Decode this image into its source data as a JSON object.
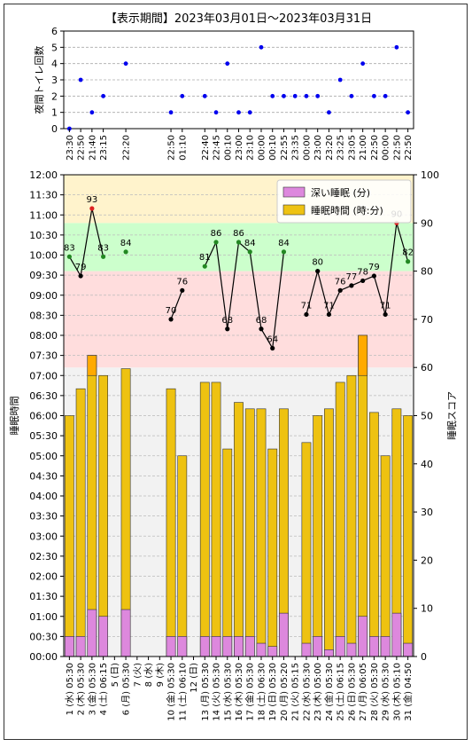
{
  "colors": {
    "deep_sleep": "#dd88dd",
    "sleep_total": "#eec211",
    "sleep_total_overflow": "#ffaa00",
    "band_high": "#fff3cc",
    "band_good": "#ccffcc",
    "band_low": "#ffdddd",
    "band_bg": "#f2f2f2",
    "point_blue": "#0000ee",
    "point_green": "#228822",
    "point_black": "#000000",
    "point_red": "#dd2222"
  },
  "chart_data": [
    {
      "type": "scatter",
      "title": "【表示期間】2023年03月01日～2023年03月31日",
      "ylabel": "夜間トイレ回数",
      "ylim": [
        0,
        6
      ],
      "yticks": [
        "0",
        "1",
        "2",
        "3",
        "4",
        "5",
        "6"
      ],
      "grid": true,
      "points": [
        {
          "day": 1,
          "value": 0
        },
        {
          "day": 2,
          "value": 3
        },
        {
          "day": 3,
          "value": 1
        },
        {
          "day": 4,
          "value": 2
        },
        {
          "day": 6,
          "value": 4
        },
        {
          "day": 10,
          "value": 1
        },
        {
          "day": 11,
          "value": 2
        },
        {
          "day": 13,
          "value": 2
        },
        {
          "day": 14,
          "value": 1
        },
        {
          "day": 15,
          "value": 4
        },
        {
          "day": 16,
          "value": 1
        },
        {
          "day": 17,
          "value": 1
        },
        {
          "day": 18,
          "value": 5
        },
        {
          "day": 19,
          "value": 2
        },
        {
          "day": 20,
          "value": 2
        },
        {
          "day": 21,
          "value": 2
        },
        {
          "day": 22,
          "value": 2
        },
        {
          "day": 23,
          "value": 2
        },
        {
          "day": 24,
          "value": 1
        },
        {
          "day": 25,
          "value": 3
        },
        {
          "day": 26,
          "value": 2
        },
        {
          "day": 27,
          "value": 4
        },
        {
          "day": 28,
          "value": 2
        },
        {
          "day": 29,
          "value": 2
        },
        {
          "day": 30,
          "value": 5
        },
        {
          "day": 31,
          "value": 1
        }
      ],
      "time_labels": [
        {
          "day": 1,
          "text": "23:30"
        },
        {
          "day": 2,
          "text": "22:50"
        },
        {
          "day": 3,
          "text": "21:40"
        },
        {
          "day": 4,
          "text": "23:15"
        },
        {
          "day": 6,
          "text": "22:20"
        },
        {
          "day": 10,
          "text": "22:50"
        },
        {
          "day": 11,
          "text": "01:10"
        },
        {
          "day": 13,
          "text": "22:40"
        },
        {
          "day": 14,
          "text": "22:45"
        },
        {
          "day": 15,
          "text": "00:10"
        },
        {
          "day": 16,
          "text": "23:00"
        },
        {
          "day": 17,
          "text": "23:10"
        },
        {
          "day": 18,
          "text": "00:00"
        },
        {
          "day": 19,
          "text": "00:10"
        },
        {
          "day": 20,
          "text": "22:55"
        },
        {
          "day": 21,
          "text": "23:35"
        },
        {
          "day": 22,
          "text": "00:00"
        },
        {
          "day": 23,
          "text": "23:00"
        },
        {
          "day": 24,
          "text": "23:20"
        },
        {
          "day": 25,
          "text": "23:25"
        },
        {
          "day": 26,
          "text": "23:05"
        },
        {
          "day": 27,
          "text": "21:00"
        },
        {
          "day": 28,
          "text": "22:50"
        },
        {
          "day": 29,
          "text": "00:00"
        },
        {
          "day": 30,
          "text": "22:50"
        },
        {
          "day": 31,
          "text": "22:50"
        }
      ]
    },
    {
      "type": "bar",
      "ylabel": "睡眠時間",
      "y2label": "睡眠スコア",
      "yticks": [
        "00:00",
        "00:30",
        "01:00",
        "01:30",
        "02:00",
        "02:30",
        "03:00",
        "03:30",
        "04:00",
        "04:30",
        "05:00",
        "05:30",
        "06:00",
        "06:30",
        "07:00",
        "07:30",
        "08:00",
        "08:30",
        "09:00",
        "09:30",
        "10:00",
        "10:30",
        "11:00",
        "11:30",
        "12:00"
      ],
      "y2ticks": [
        "0",
        "10",
        "20",
        "30",
        "40",
        "50",
        "60",
        "70",
        "80",
        "90",
        "100"
      ],
      "ylim_hours": [
        0,
        12
      ],
      "y2lim": [
        0,
        100
      ],
      "legend": [
        "深い睡眠 (分)",
        "睡眠時間 (時:分)"
      ],
      "legend_position": "top-right",
      "categories": [
        "1 (水) 05:30",
        "2 (木) 05:30",
        "3 (金) 05:30",
        "4 (土) 06:15",
        "5 (日)",
        "6 (月) 05:30",
        "7 (火)",
        "8 (水)",
        "9 (木)",
        "10 (金) 05:30",
        "11 (土) 06:10",
        "12 (日)",
        "13 (月) 05:30",
        "14 (火) 05:30",
        "15 (水) 05:30",
        "16 (木) 05:30",
        "17 (金) 05:30",
        "18 (土) 06:30",
        "19 (日) 05:30",
        "20 (月) 05:20",
        "21 (火) 05:15",
        "22 (水) 05:30",
        "23 (木) 05:00",
        "24 (金) 05:30",
        "25 (土) 06:15",
        "26 (日) 05:30",
        "27 (月) 06:05",
        "28 (火) 05:30",
        "29 (水) 05:30",
        "30 (木) 05:10",
        "31 (金) 04:50"
      ],
      "sleep_hours": [
        6.0,
        6.67,
        7.5,
        7.0,
        null,
        7.17,
        null,
        null,
        null,
        6.67,
        5.0,
        null,
        6.83,
        6.83,
        5.17,
        6.33,
        6.17,
        6.17,
        5.17,
        6.17,
        null,
        5.33,
        6.0,
        6.17,
        6.83,
        7.0,
        8.0,
        6.08,
        5.0,
        6.17,
        6.0
      ],
      "overflow_hours": [
        0,
        0,
        7.5,
        0,
        null,
        0,
        null,
        null,
        null,
        0,
        0,
        null,
        0,
        0,
        0,
        0,
        0,
        0,
        0,
        0,
        null,
        0,
        0,
        0,
        0,
        0,
        8.0,
        0,
        0,
        0,
        0
      ],
      "overflow_start": [
        0,
        0,
        7.0,
        0,
        null,
        0,
        null,
        null,
        null,
        0,
        0,
        null,
        0,
        0,
        0,
        0,
        0,
        0,
        0,
        0,
        null,
        0,
        0,
        0,
        0,
        0,
        7.0,
        0,
        0,
        0,
        0
      ],
      "deep_sleep_hours": [
        0.5,
        0.5,
        1.17,
        1.0,
        null,
        1.17,
        null,
        null,
        null,
        0.5,
        0.5,
        null,
        0.5,
        0.5,
        0.5,
        0.5,
        0.5,
        0.33,
        0.25,
        1.08,
        null,
        0.33,
        0.5,
        0.17,
        0.5,
        0.33,
        1.0,
        0.5,
        0.5,
        1.08,
        0.33
      ],
      "scores": [
        83,
        79,
        93,
        83,
        null,
        84,
        null,
        null,
        null,
        70,
        76,
        null,
        81,
        86,
        68,
        86,
        84,
        68,
        64,
        84,
        null,
        71,
        80,
        71,
        76,
        77,
        78,
        79,
        71,
        90,
        82
      ],
      "score_colors": [
        "green",
        "black",
        "red",
        "green",
        null,
        "green",
        null,
        null,
        null,
        "black",
        "black",
        null,
        "green",
        "green",
        "black",
        "green",
        "green",
        "black",
        "black",
        "green",
        null,
        "black",
        "black",
        "black",
        "black",
        "black",
        "black",
        "black",
        "black",
        "red",
        "green"
      ],
      "score_line_segments": [
        [
          1,
          2,
          3,
          4
        ],
        [
          10,
          11
        ],
        [
          13,
          14,
          15,
          16,
          17,
          18,
          19,
          20
        ],
        [
          22,
          23,
          24,
          25,
          26,
          27,
          28,
          29,
          30,
          31
        ]
      ],
      "bands": [
        {
          "from": 0,
          "to": 60,
          "color": "band_bg"
        },
        {
          "from": 60,
          "to": 80,
          "color": "band_low"
        },
        {
          "from": 80,
          "to": 90,
          "color": "band_good"
        },
        {
          "from": 90,
          "to": 100,
          "color": "band_high"
        }
      ]
    }
  ]
}
